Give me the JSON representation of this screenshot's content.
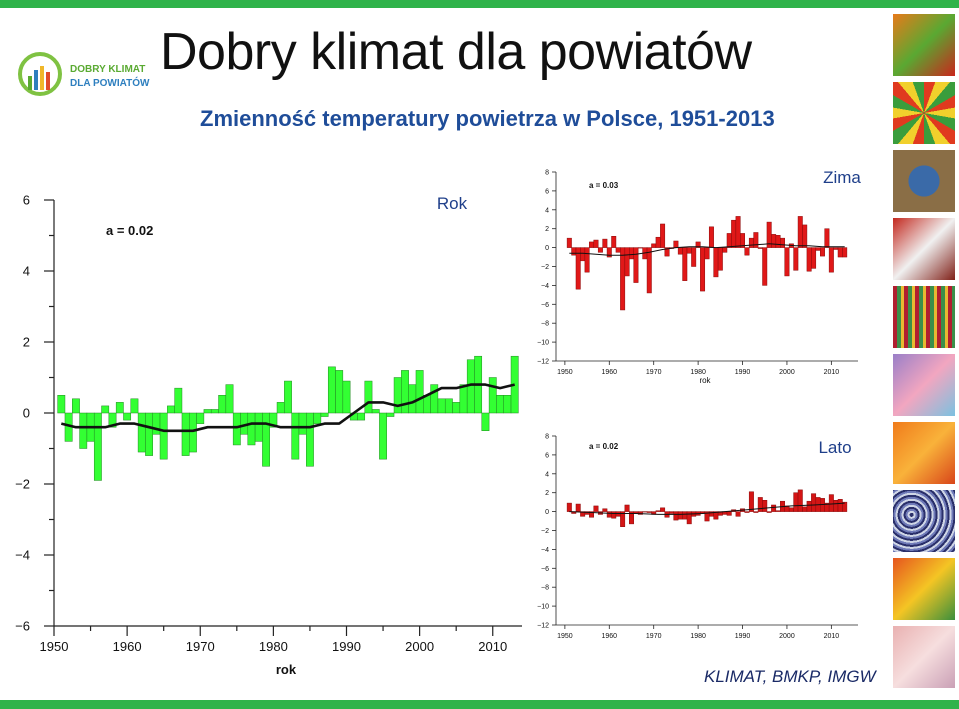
{
  "slide": {
    "title": "Dobry klimat dla powiatów",
    "subtitle": "Zmienność temperatury powietrza w Polsce, 1951-2013",
    "source": "KLIMAT, BMKP, IMGW",
    "logo_line1": "DOBRY KLIMAT",
    "logo_line2": "DLA POWIATÓW",
    "accent_green": "#2fb34a",
    "subtitle_color": "#1f4d99"
  },
  "chart_data": [
    {
      "type": "bar",
      "name": "Rok",
      "annotation": "a = 0.02",
      "xlabel": "rok",
      "ylabel": "",
      "xlim": [
        1950,
        2014
      ],
      "ylim": [
        -6,
        6
      ],
      "xticks": [
        1950,
        1960,
        1970,
        1980,
        1990,
        2000,
        2010
      ],
      "yticks": [
        6,
        4,
        2,
        0,
        -2,
        -4,
        -6
      ],
      "bar_color": "#33ff33",
      "trend_color": "#111111",
      "x": [
        1951,
        1952,
        1953,
        1954,
        1955,
        1956,
        1957,
        1958,
        1959,
        1960,
        1961,
        1962,
        1963,
        1964,
        1965,
        1966,
        1967,
        1968,
        1969,
        1970,
        1971,
        1972,
        1973,
        1974,
        1975,
        1976,
        1977,
        1978,
        1979,
        1980,
        1981,
        1982,
        1983,
        1984,
        1985,
        1986,
        1987,
        1988,
        1989,
        1990,
        1991,
        1992,
        1993,
        1994,
        1995,
        1996,
        1997,
        1998,
        1999,
        2000,
        2001,
        2002,
        2003,
        2004,
        2005,
        2006,
        2007,
        2008,
        2009,
        2010,
        2011,
        2012,
        2013
      ],
      "values": [
        0.5,
        -0.8,
        0.4,
        -1.0,
        -0.8,
        -1.9,
        0.2,
        -0.4,
        0.3,
        -0.2,
        0.4,
        -1.1,
        -1.2,
        -0.6,
        -1.3,
        0.2,
        0.7,
        -1.2,
        -1.1,
        -0.3,
        0.1,
        0.1,
        0.5,
        0.8,
        -0.9,
        -0.6,
        -0.9,
        -0.8,
        -1.5,
        -0.4,
        0.3,
        0.9,
        -1.3,
        -0.6,
        -1.5,
        -0.3,
        -0.1,
        1.3,
        1.2,
        0.9,
        -0.2,
        -0.2,
        0.9,
        0.1,
        -1.3,
        -0.1,
        1.0,
        1.2,
        0.8,
        1.2,
        0.5,
        0.8,
        0.4,
        0.4,
        0.3,
        0.8,
        1.5,
        1.6,
        -0.5,
        1.0,
        0.5,
        0.5,
        1.6
      ],
      "trend": [
        -0.3,
        -0.4,
        -0.4,
        -0.4,
        -0.3,
        -0.3,
        -0.4,
        -0.5,
        -0.5,
        -0.5,
        -0.4,
        -0.4,
        -0.4,
        -0.3,
        -0.3,
        -0.4,
        -0.4,
        -0.4,
        -0.3,
        -0.3,
        0.0,
        0.3,
        0.3,
        0.2,
        0.3,
        0.5,
        0.7,
        0.7,
        0.8,
        0.8,
        0.7,
        0.8
      ],
      "trend_x": [
        1951,
        1953,
        1955,
        1957,
        1959,
        1961,
        1963,
        1965,
        1967,
        1969,
        1971,
        1973,
        1975,
        1977,
        1979,
        1981,
        1983,
        1985,
        1987,
        1989,
        1991,
        1993,
        1995,
        1997,
        1999,
        2001,
        2003,
        2005,
        2007,
        2009,
        2011,
        2013
      ]
    },
    {
      "type": "bar",
      "name": "Zima",
      "annotation": "a = 0.03",
      "xlabel": "rok",
      "xlim": [
        1948,
        2016
      ],
      "ylim": [
        -12,
        8
      ],
      "xticks": [
        1950,
        1960,
        1970,
        1980,
        1990,
        2000,
        2010
      ],
      "yticks": [
        8,
        6,
        4,
        2,
        0,
        -2,
        -4,
        -6,
        -8,
        -10,
        -12
      ],
      "bar_color": "#e01818",
      "x": [
        1951,
        1952,
        1953,
        1954,
        1955,
        1956,
        1957,
        1958,
        1959,
        1960,
        1961,
        1962,
        1963,
        1964,
        1965,
        1966,
        1967,
        1968,
        1969,
        1970,
        1971,
        1972,
        1973,
        1974,
        1975,
        1976,
        1977,
        1978,
        1979,
        1980,
        1981,
        1982,
        1983,
        1984,
        1985,
        1986,
        1987,
        1988,
        1989,
        1990,
        1991,
        1992,
        1993,
        1994,
        1995,
        1996,
        1997,
        1998,
        1999,
        2000,
        2001,
        2002,
        2003,
        2004,
        2005,
        2006,
        2007,
        2008,
        2009,
        2010,
        2011,
        2012,
        2013
      ],
      "values": [
        1.0,
        -0.8,
        -4.4,
        -1.4,
        -2.6,
        0.6,
        0.8,
        -0.5,
        0.9,
        -1.0,
        1.2,
        -0.5,
        -6.6,
        -3.0,
        -1.2,
        -3.7,
        0.0,
        -1.2,
        -4.8,
        0.4,
        1.1,
        2.5,
        -0.9,
        -0.1,
        0.7,
        -0.7,
        -3.5,
        -0.6,
        -2.0,
        0.6,
        -4.6,
        -1.2,
        2.2,
        -3.1,
        -2.4,
        -0.5,
        1.5,
        2.9,
        3.3,
        1.5,
        -0.8,
        1.0,
        1.6,
        -0.1,
        -4.0,
        2.7,
        1.4,
        1.3,
        1.0,
        -3.0,
        0.4,
        -2.4,
        3.3,
        2.4,
        -2.5,
        -2.2,
        -0.3,
        -0.9,
        2.0,
        -2.6,
        -0.2,
        -1.0,
        -1.0
      ],
      "trend": [
        -0.6,
        -0.6,
        -0.7,
        -0.8,
        -0.8,
        -0.7,
        -0.5,
        -0.2,
        0.0,
        0.1,
        0.1,
        0.0,
        0.1,
        0.2,
        0.3,
        0.4,
        0.3,
        0.2,
        0.2,
        0.1,
        0.1
      ],
      "trend_x": [
        1951,
        1954,
        1957,
        1960,
        1963,
        1966,
        1969,
        1972,
        1975,
        1978,
        1981,
        1984,
        1987,
        1990,
        1993,
        1996,
        1999,
        2002,
        2005,
        2008,
        2013
      ]
    },
    {
      "type": "bar",
      "name": "Lato",
      "annotation": "a = 0.02",
      "xlabel": "rok",
      "xlim": [
        1948,
        2016
      ],
      "ylim": [
        -12,
        8
      ],
      "xticks": [
        1950,
        1960,
        1970,
        1980,
        1990,
        2000,
        2010
      ],
      "yticks": [
        8,
        6,
        4,
        2,
        0,
        -2,
        -4,
        -6,
        -8,
        -10,
        -12
      ],
      "bar_color": "#d41515",
      "x": [
        1951,
        1952,
        1953,
        1954,
        1955,
        1956,
        1957,
        1958,
        1959,
        1960,
        1961,
        1962,
        1963,
        1964,
        1965,
        1966,
        1967,
        1968,
        1969,
        1970,
        1971,
        1972,
        1973,
        1974,
        1975,
        1976,
        1977,
        1978,
        1979,
        1980,
        1981,
        1982,
        1983,
        1984,
        1985,
        1986,
        1987,
        1988,
        1989,
        1990,
        1991,
        1992,
        1993,
        1994,
        1995,
        1996,
        1997,
        1998,
        1999,
        2000,
        2001,
        2002,
        2003,
        2004,
        2005,
        2006,
        2007,
        2008,
        2009,
        2010,
        2011,
        2012,
        2013
      ],
      "values": [
        0.9,
        -0.2,
        0.8,
        -0.5,
        -0.3,
        -0.6,
        0.6,
        -0.3,
        0.3,
        -0.6,
        -0.7,
        -0.5,
        -1.6,
        0.7,
        -1.3,
        -0.2,
        -0.3,
        0.0,
        -0.1,
        -0.3,
        0.1,
        0.4,
        -0.6,
        -0.2,
        -0.9,
        -0.8,
        -0.8,
        -1.3,
        -0.5,
        -0.4,
        -0.2,
        -1.0,
        -0.5,
        -0.8,
        -0.4,
        -0.3,
        -0.4,
        0.2,
        -0.5,
        0.3,
        -0.1,
        2.1,
        -0.1,
        1.5,
        1.2,
        -0.1,
        0.7,
        0.1,
        1.1,
        0.6,
        0.4,
        2.0,
        2.3,
        0.5,
        1.1,
        1.9,
        1.5,
        1.4,
        0.9,
        1.8,
        1.2,
        1.3,
        1.0
      ],
      "trend": [
        0.0,
        -0.1,
        -0.2,
        -0.2,
        -0.3,
        -0.3,
        -0.2,
        0.0,
        0.2,
        0.4,
        0.6,
        0.7,
        0.8,
        0.9
      ],
      "trend_x": [
        1951,
        1956,
        1961,
        1966,
        1971,
        1976,
        1981,
        1986,
        1991,
        1996,
        2001,
        2006,
        2010,
        2013
      ]
    }
  ],
  "tiles": [
    {
      "name": "autumn-leaves-tile",
      "colors": [
        "#e87a1a",
        "#5aa832",
        "#c9261c"
      ]
    },
    {
      "name": "spiral-tile",
      "colors": [
        "#e03a1f",
        "#f1d02c",
        "#3a9d3c"
      ]
    },
    {
      "name": "earth-tile",
      "colors": [
        "#8a6e46",
        "#3a6aa8",
        "#d8c9a0"
      ]
    },
    {
      "name": "crowd-tile",
      "colors": [
        "#c3281e",
        "#f0f0f0",
        "#802018"
      ]
    },
    {
      "name": "stripes-tile",
      "colors": [
        "#b01f30",
        "#3b8f4a",
        "#e8b931"
      ]
    },
    {
      "name": "pastel-tile",
      "colors": [
        "#9a7fc8",
        "#f2a6c0",
        "#7bc1e0"
      ]
    },
    {
      "name": "orange-tile",
      "colors": [
        "#f07b1b",
        "#f9b23a",
        "#d8451a"
      ]
    },
    {
      "name": "noise-tile",
      "colors": [
        "#2a2f6a",
        "#cfd6e6",
        "#6f7ab8"
      ]
    },
    {
      "name": "tulips-tile",
      "colors": [
        "#e6551e",
        "#f4c524",
        "#3b8f3c"
      ]
    },
    {
      "name": "blush-tile",
      "colors": [
        "#e9b1b1",
        "#f6dede",
        "#caa0b6"
      ]
    }
  ]
}
